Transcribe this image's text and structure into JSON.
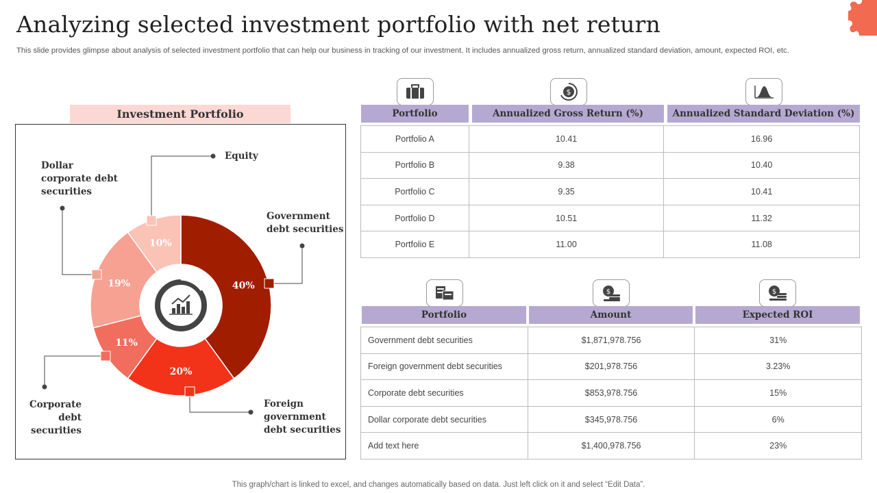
{
  "title": "Analyzing selected investment portfolio with net return",
  "subtitle": "This slide provides glimpse about analysis of selected investment portfolio that can help our business in tracking of our investment. It includes annualized gross return, annualized standard deviation, amount, expected ROI, etc.",
  "footer": "This graph/chart is linked to excel, and changes automatically based on data. Just left click on it and select “Edit Data”.",
  "chart_data": {
    "type": "pie",
    "title": "Investment Portfolio",
    "categories": [
      "Government debt securities",
      "Foreign government debt securities",
      "Corporate debt securities",
      "Dollar corporate debt securities",
      "Equity"
    ],
    "values": [
      40,
      20,
      11,
      19,
      10
    ],
    "value_labels": [
      "40%",
      "20%",
      "11%",
      "19%",
      "10%"
    ],
    "colors": [
      "#a11d00",
      "#f2331a",
      "#f16d5e",
      "#f7a192",
      "#fbc2b6"
    ],
    "hole": "donut"
  },
  "labels": {
    "equity": "Equity",
    "government": [
      "Government",
      "debt securities"
    ],
    "foreign": [
      "Foreign",
      "government",
      "debt securities"
    ],
    "corporate": [
      "Corporate",
      "debt",
      "securities"
    ],
    "dollar": [
      "Dollar",
      "corporate debt",
      "securities"
    ]
  },
  "icons": {
    "t1": [
      "briefcase-icon",
      "coin-cycle-icon",
      "bell-curve-icon"
    ],
    "t2": [
      "portfolio-chart-icon",
      "coin-stack-icon",
      "dollar-coins-icon"
    ]
  },
  "table1": {
    "headers": [
      "Portfolio",
      "Annualized Gross Return (%)",
      "Annualized Standard Deviation (%)"
    ],
    "rows": [
      [
        "Portfolio A",
        "10.41",
        "16.96"
      ],
      [
        "Portfolio B",
        "9.38",
        "10.40"
      ],
      [
        "Portfolio C",
        "9.35",
        "10.41"
      ],
      [
        "Portfolio D",
        "10.51",
        "11.32"
      ],
      [
        "Portfolio E",
        "11.00",
        "11.08"
      ]
    ]
  },
  "table2": {
    "headers": [
      "Portfolio",
      "Amount",
      "Expected ROI"
    ],
    "rows": [
      [
        "Government  debt securities",
        "$1,871,978.756",
        "31%"
      ],
      [
        "Foreign  government  debt securities",
        "$201,978.756",
        "3.23%"
      ],
      [
        "Corporate  debt securities",
        "$853,978.756",
        "15%"
      ],
      [
        "Dollar corporate  debt securities",
        "$345,978.756",
        "6%"
      ],
      [
        "Add text here",
        "$1,400,978.756",
        "23%"
      ]
    ]
  }
}
